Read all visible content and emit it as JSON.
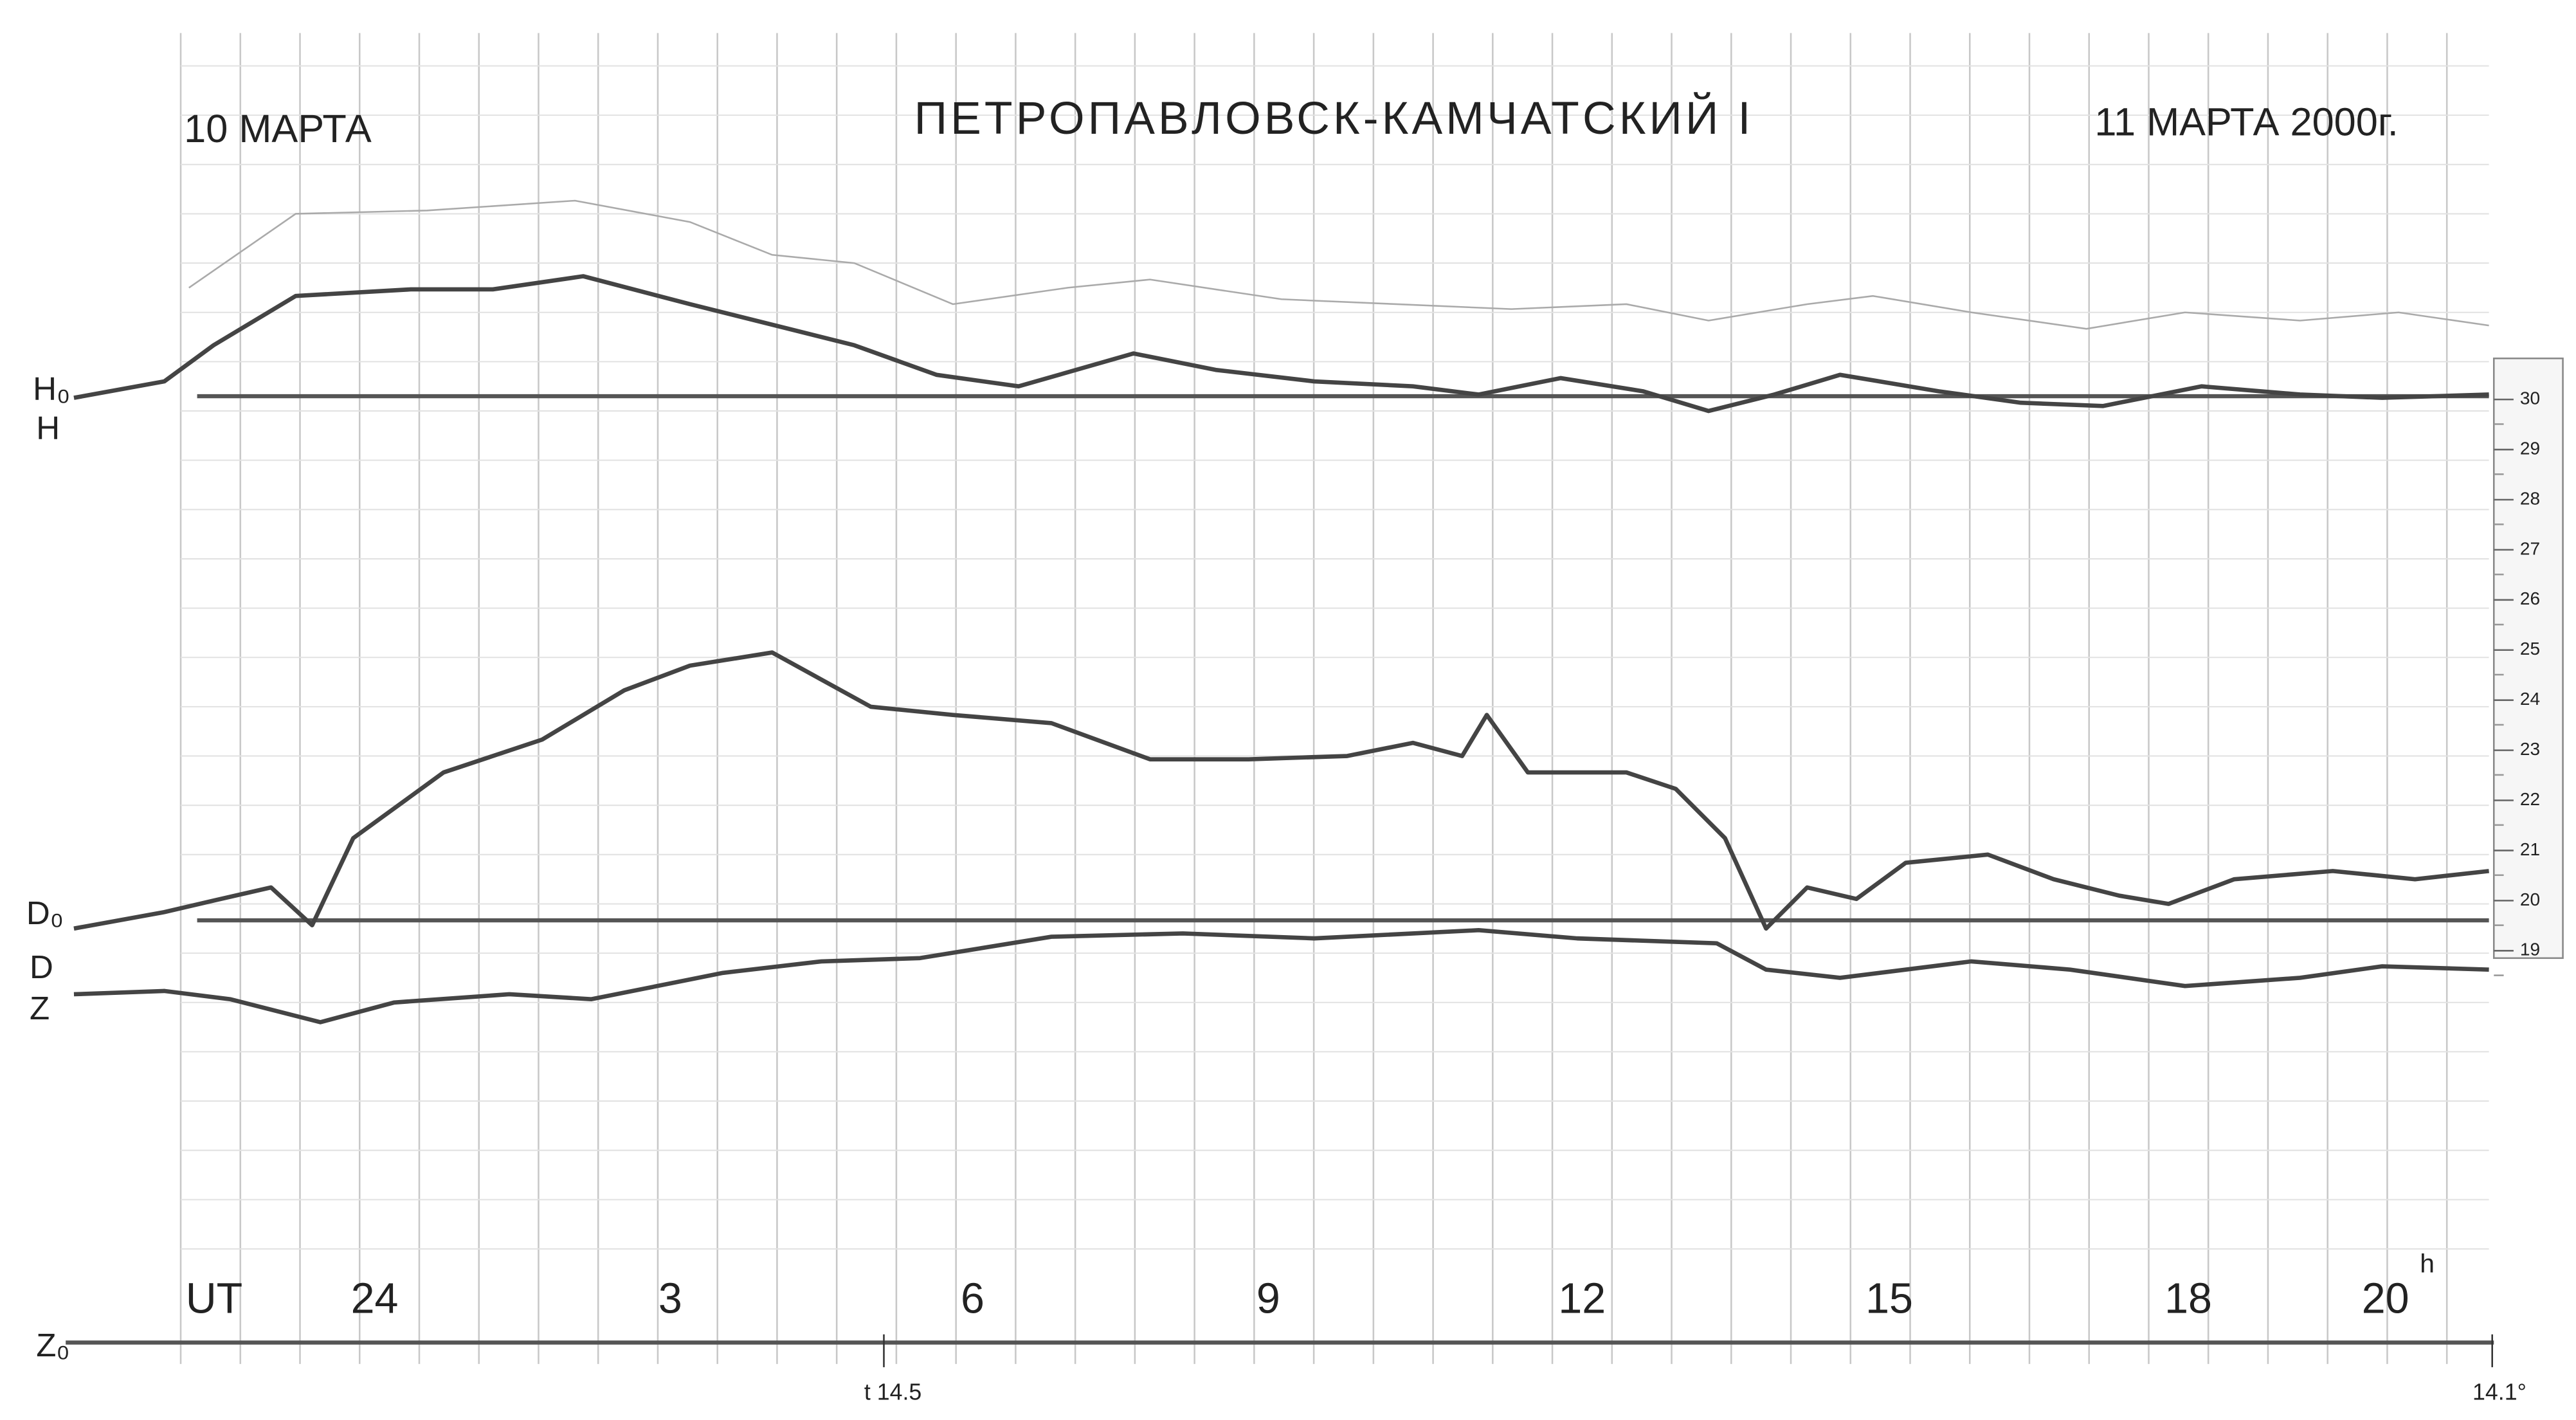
{
  "header": {
    "date_left": "10 МАРТА",
    "title": "ПЕТРОПАВЛОВСК-КАМЧАТСКИЙ I",
    "date_right": "11 МАРТА 2000г."
  },
  "channels": {
    "h0": "H₀",
    "h": "H",
    "d0": "D₀",
    "d": "D",
    "z": "Z",
    "z0": "Z₀"
  },
  "time_axis": {
    "label": "UT",
    "hours": [
      "24",
      "3",
      "6",
      "9",
      "12",
      "15",
      "18",
      "20"
    ],
    "unit": "h"
  },
  "temperature": {
    "mid": "t 14.5",
    "end": "14.1°"
  },
  "scale": {
    "ticks": [
      "30",
      "29",
      "28",
      "27",
      "26",
      "25",
      "24",
      "23",
      "22",
      "21",
      "20",
      "19"
    ]
  }
}
